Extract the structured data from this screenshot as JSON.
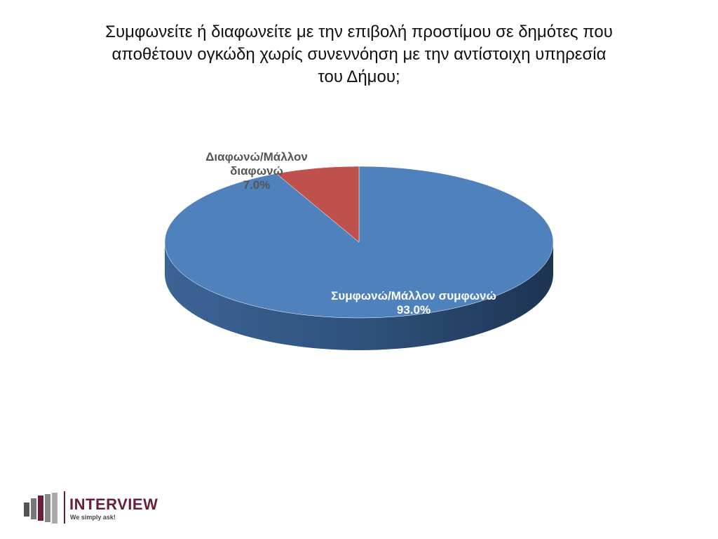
{
  "chart_data": {
    "type": "pie",
    "title": "Συμφωνείτε ή διαφωνείτε με την επιβολή προστίμου σε δημότες που αποθέτουν ογκώδη χωρίς συνεννόηση με την αντίστοιχη υπηρεσία του Δήμου;",
    "categories": [
      "Συμφωνώ/Μάλλον συμφωνώ",
      "Διαφωνώ/Μάλλον διαφωνώ"
    ],
    "values": [
      93.0,
      7.0
    ],
    "value_labels": [
      "93.0%",
      "7.0%"
    ],
    "colors": [
      "#4f81bd",
      "#c0504d"
    ]
  },
  "logo": {
    "name": "INTERVIEW",
    "tagline": "We simply ask!"
  }
}
